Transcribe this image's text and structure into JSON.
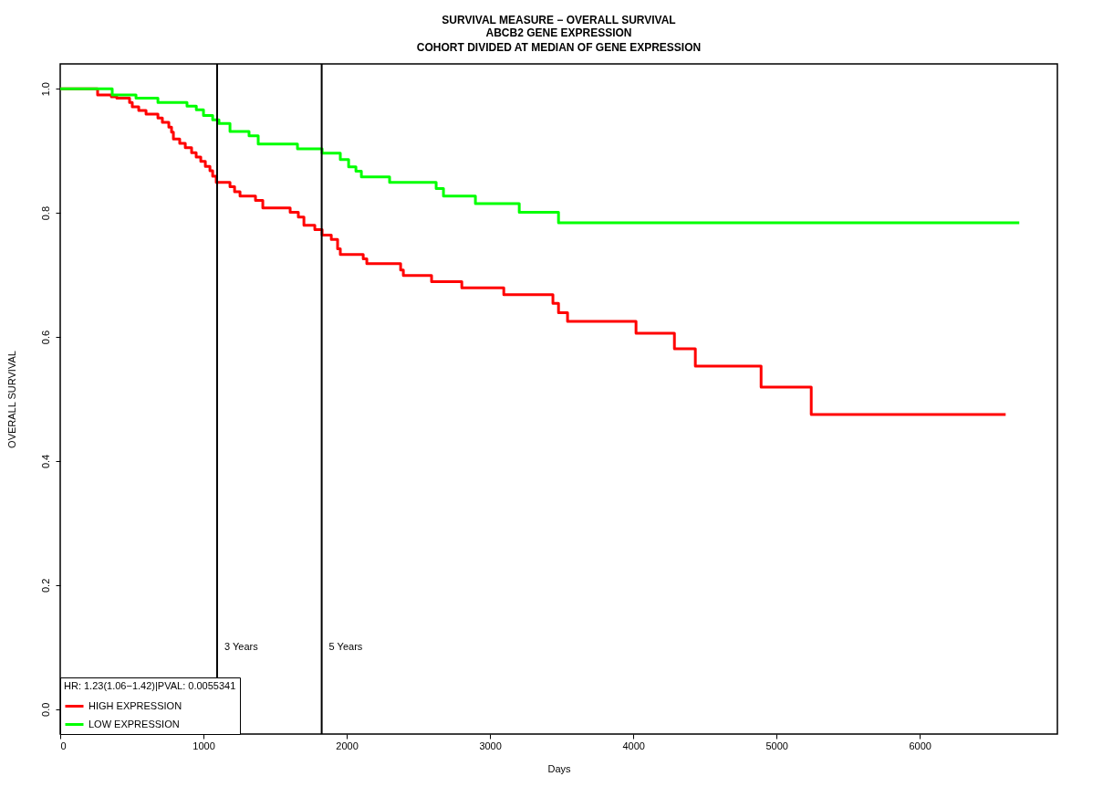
{
  "chart_data": {
    "type": "step",
    "title": "SURVIVAL MEASURE − OVERALL SURVIVAL",
    "subtitle": "ABCB2  GENE EXPRESSION\nCOHORT DIVIDED AT MEDIAN OF GENE EXPRESSION",
    "xlabel": "Days",
    "ylabel": "OVERALL SURVIVAL",
    "legend_title": "HR: 1.23(1.06−1.42)|PVAL: 0.0055341",
    "legend": "bottom left",
    "grid": false,
    "line_style": "solid",
    "xlim": [
      0,
      6960
    ],
    "ylim": [
      -0.04,
      1.04
    ],
    "xticks": [
      0,
      1000,
      2000,
      3000,
      4000,
      5000,
      6000
    ],
    "yticks": [
      {
        "value": 0,
        "label": "0.0"
      },
      0.2,
      0.4,
      0.6,
      0.8,
      {
        "value": 1,
        "label": "1.0"
      }
    ],
    "series": [
      {
        "name": "HIGH EXPRESSION",
        "color": "#ff0000",
        "x": [
          0,
          261,
          357,
          395,
          484,
          503,
          548,
          599,
          682,
          713,
          758,
          777,
          790,
          834,
          873,
          917,
          949,
          981,
          1013,
          1045,
          1064,
          1089,
          1185,
          1217,
          1255,
          1363,
          1414,
          1605,
          1662,
          1701,
          1777,
          1828,
          1892,
          1936,
          1955,
          2115,
          2140,
          2376,
          2395,
          2592,
          2803,
          3096,
          3439,
          3478,
          3541,
          4019,
          4287,
          4433,
          4892,
          5242,
          6599
        ],
        "values": [
          1.0,
          0.99,
          0.987,
          0.985,
          0.978,
          0.971,
          0.965,
          0.959,
          0.953,
          0.946,
          0.938,
          0.93,
          0.919,
          0.912,
          0.905,
          0.897,
          0.89,
          0.883,
          0.875,
          0.868,
          0.859,
          0.849,
          0.842,
          0.834,
          0.827,
          0.82,
          0.808,
          0.801,
          0.793,
          0.78,
          0.773,
          0.764,
          0.757,
          0.742,
          0.733,
          0.726,
          0.718,
          0.708,
          0.699,
          0.689,
          0.679,
          0.668,
          0.654,
          0.639,
          0.625,
          0.606,
          0.581,
          0.553,
          0.519,
          0.475,
          0.475
        ]
      },
      {
        "name": "LOW EXPRESSION",
        "color": "#00ff00",
        "x": [
          0,
          363,
          529,
          682,
          885,
          950,
          1000,
          1064,
          1108,
          1185,
          1318,
          1382,
          1656,
          1828,
          1955,
          2013,
          2064,
          2102,
          2299,
          2624,
          2675,
          2898,
          3204,
          3478,
          6694
        ],
        "values": [
          1.0,
          0.99,
          0.985,
          0.978,
          0.972,
          0.966,
          0.957,
          0.95,
          0.944,
          0.931,
          0.924,
          0.911,
          0.903,
          0.896,
          0.886,
          0.874,
          0.867,
          0.858,
          0.849,
          0.839,
          0.827,
          0.815,
          0.801,
          0.784,
          0.784
        ]
      }
    ],
    "ref_lines": [
      {
        "axis": "x",
        "value": 1095,
        "label": "3 Years",
        "color": "#000000"
      },
      {
        "axis": "x",
        "value": 1825,
        "label": "5 Years",
        "color": "#000000"
      }
    ]
  }
}
